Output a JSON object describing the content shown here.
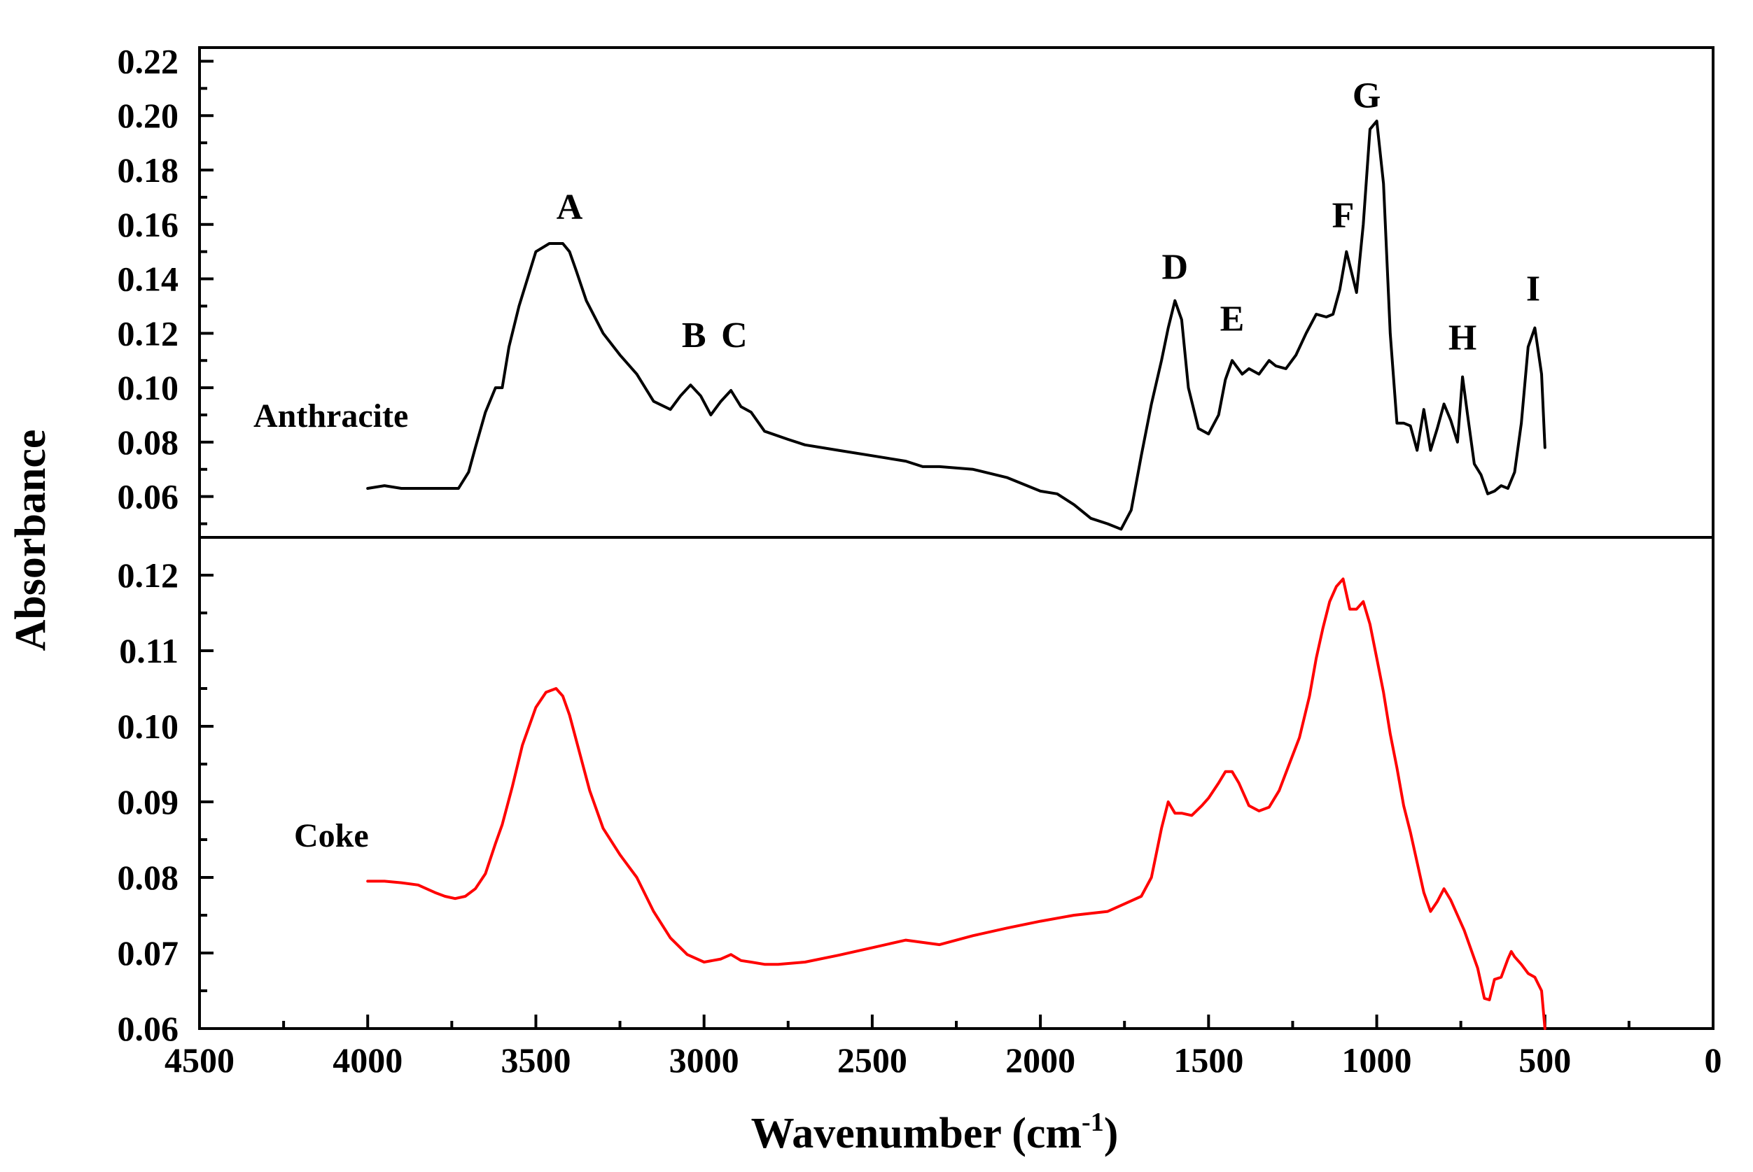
{
  "chart_data": {
    "type": "line",
    "xlabel": "Wavenumber (cm",
    "xlabel_sup": "-1",
    "xlabel_close": ")",
    "ylabel": "Absorbance",
    "xlim": [
      4500,
      0
    ],
    "x_ticks": [
      "4500",
      "4000",
      "3500",
      "3000",
      "2500",
      "2000",
      "1500",
      "1000",
      "500",
      "0"
    ],
    "panels": [
      {
        "name": "Anthracite",
        "color": "#000000",
        "ylim": [
          0.045,
          0.225
        ],
        "y_ticks": [
          "0.06",
          "0.08",
          "0.10",
          "0.12",
          "0.14",
          "0.16",
          "0.18",
          "0.20",
          "0.22"
        ],
        "label": "Anthracite",
        "x": [
          4000,
          3950,
          3900,
          3850,
          3800,
          3760,
          3730,
          3700,
          3680,
          3650,
          3620,
          3600,
          3580,
          3550,
          3500,
          3460,
          3420,
          3400,
          3380,
          3350,
          3300,
          3250,
          3200,
          3150,
          3100,
          3070,
          3040,
          3010,
          2980,
          2950,
          2920,
          2890,
          2860,
          2820,
          2750,
          2700,
          2600,
          2500,
          2400,
          2350,
          2300,
          2200,
          2100,
          2000,
          1950,
          1900,
          1850,
          1800,
          1760,
          1730,
          1700,
          1670,
          1640,
          1620,
          1600,
          1580,
          1560,
          1530,
          1500,
          1470,
          1450,
          1430,
          1400,
          1380,
          1350,
          1320,
          1300,
          1270,
          1240,
          1210,
          1180,
          1150,
          1130,
          1110,
          1090,
          1070,
          1060,
          1040,
          1020,
          1000,
          980,
          960,
          940,
          920,
          900,
          880,
          860,
          840,
          820,
          800,
          780,
          760,
          745,
          730,
          710,
          690,
          670,
          650,
          630,
          610,
          590,
          570,
          550,
          530,
          510,
          500
        ],
        "y": [
          0.063,
          0.064,
          0.063,
          0.063,
          0.063,
          0.063,
          0.063,
          0.069,
          0.078,
          0.091,
          0.1,
          0.1,
          0.115,
          0.13,
          0.15,
          0.153,
          0.153,
          0.15,
          0.143,
          0.132,
          0.12,
          0.112,
          0.105,
          0.095,
          0.092,
          0.097,
          0.101,
          0.097,
          0.09,
          0.095,
          0.099,
          0.093,
          0.091,
          0.084,
          0.081,
          0.079,
          0.077,
          0.075,
          0.073,
          0.071,
          0.071,
          0.07,
          0.067,
          0.062,
          0.061,
          0.057,
          0.052,
          0.05,
          0.048,
          0.055,
          0.075,
          0.094,
          0.11,
          0.122,
          0.132,
          0.125,
          0.1,
          0.085,
          0.083,
          0.09,
          0.103,
          0.11,
          0.105,
          0.107,
          0.105,
          0.11,
          0.108,
          0.107,
          0.112,
          0.12,
          0.127,
          0.126,
          0.127,
          0.136,
          0.15,
          0.14,
          0.135,
          0.16,
          0.195,
          0.198,
          0.175,
          0.12,
          0.087,
          0.087,
          0.086,
          0.077,
          0.092,
          0.077,
          0.085,
          0.094,
          0.088,
          0.08,
          0.104,
          0.09,
          0.072,
          0.068,
          0.061,
          0.062,
          0.064,
          0.063,
          0.069,
          0.087,
          0.115,
          0.122,
          0.105,
          0.078
        ],
        "annotations": [
          {
            "text": "A",
            "x": 3400,
            "y": 0.162
          },
          {
            "text": "B",
            "x": 3030,
            "y": 0.115
          },
          {
            "text": "C",
            "x": 2910,
            "y": 0.115
          },
          {
            "text": "D",
            "x": 1600,
            "y": 0.14
          },
          {
            "text": "E",
            "x": 1430,
            "y": 0.121
          },
          {
            "text": "F",
            "x": 1100,
            "y": 0.159
          },
          {
            "text": "G",
            "x": 1030,
            "y": 0.203
          },
          {
            "text": "H",
            "x": 745,
            "y": 0.114
          },
          {
            "text": "I",
            "x": 535,
            "y": 0.132
          }
        ]
      },
      {
        "name": "Coke",
        "color": "#ff0000",
        "ylim": [
          0.06,
          0.125
        ],
        "y_ticks": [
          "0.06",
          "0.07",
          "0.08",
          "0.09",
          "0.10",
          "0.11",
          "0.12"
        ],
        "label": "Coke",
        "x": [
          4000,
          3950,
          3900,
          3850,
          3800,
          3770,
          3740,
          3710,
          3680,
          3650,
          3620,
          3600,
          3570,
          3540,
          3500,
          3470,
          3440,
          3420,
          3400,
          3370,
          3340,
          3300,
          3250,
          3200,
          3150,
          3100,
          3050,
          3000,
          2950,
          2920,
          2890,
          2860,
          2820,
          2780,
          2700,
          2600,
          2500,
          2400,
          2300,
          2200,
          2100,
          2000,
          1900,
          1800,
          1750,
          1700,
          1670,
          1640,
          1620,
          1600,
          1580,
          1550,
          1520,
          1500,
          1470,
          1450,
          1430,
          1410,
          1380,
          1350,
          1320,
          1290,
          1260,
          1230,
          1200,
          1180,
          1160,
          1140,
          1120,
          1100,
          1080,
          1060,
          1040,
          1020,
          1000,
          980,
          960,
          940,
          920,
          900,
          880,
          860,
          840,
          820,
          800,
          780,
          760,
          740,
          720,
          700,
          680,
          665,
          650,
          630,
          610,
          600,
          590,
          570,
          550,
          530,
          510,
          500
        ],
        "y": [
          0.0795,
          0.0795,
          0.0793,
          0.079,
          0.078,
          0.0775,
          0.0772,
          0.0775,
          0.0785,
          0.0805,
          0.0845,
          0.087,
          0.092,
          0.0975,
          0.1025,
          0.1045,
          0.105,
          0.104,
          0.1015,
          0.0965,
          0.0915,
          0.0865,
          0.083,
          0.08,
          0.0755,
          0.072,
          0.0698,
          0.0688,
          0.0692,
          0.0698,
          0.069,
          0.0688,
          0.0685,
          0.0685,
          0.0688,
          0.0697,
          0.0707,
          0.0717,
          0.0711,
          0.0723,
          0.0733,
          0.0742,
          0.075,
          0.0755,
          0.0765,
          0.0775,
          0.08,
          0.0865,
          0.09,
          0.0885,
          0.0885,
          0.0882,
          0.0895,
          0.0905,
          0.0925,
          0.094,
          0.094,
          0.0925,
          0.0895,
          0.0888,
          0.0893,
          0.0915,
          0.095,
          0.0985,
          0.104,
          0.109,
          0.113,
          0.1165,
          0.1185,
          0.1195,
          0.1155,
          0.1155,
          0.1165,
          0.1135,
          0.109,
          0.1045,
          0.099,
          0.0945,
          0.0895,
          0.086,
          0.082,
          0.078,
          0.0755,
          0.0768,
          0.0785,
          0.077,
          0.075,
          0.073,
          0.0705,
          0.068,
          0.064,
          0.0638,
          0.0665,
          0.0668,
          0.0692,
          0.0702,
          0.0695,
          0.0685,
          0.0673,
          0.0668,
          0.065,
          0.06
        ]
      }
    ]
  }
}
